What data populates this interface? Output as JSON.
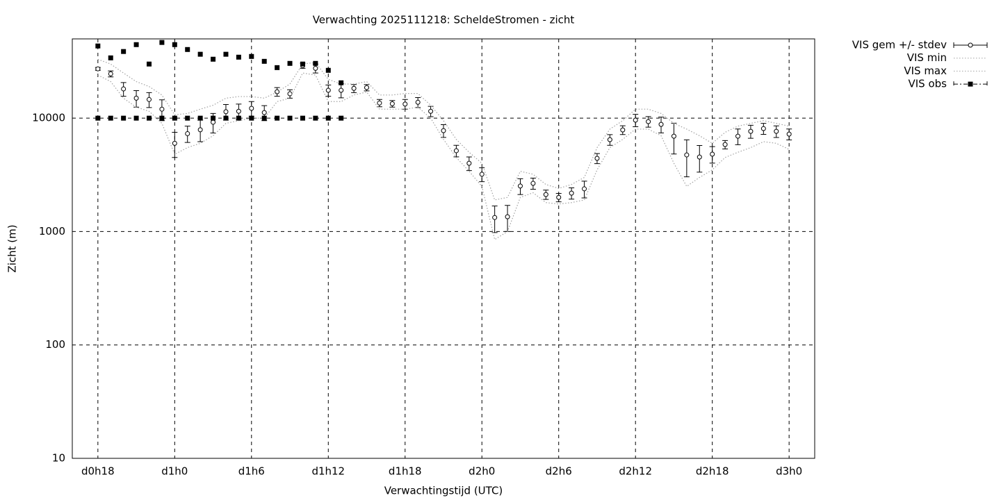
{
  "chart_data": {
    "type": "errorbar",
    "title": "Verwachting 2025111218: ScheldeStromen - zicht",
    "xlabel": "Verwachtingstijd (UTC)",
    "ylabel": "Zicht (m)",
    "log_y": true,
    "grid": true,
    "legend": "outside-right",
    "xlim": [
      16,
      74
    ],
    "ylim": [
      10,
      50000
    ],
    "xticks": [
      {
        "value": 18,
        "label": "d0h18"
      },
      {
        "value": 24,
        "label": "d1h0"
      },
      {
        "value": 30,
        "label": "d1h6"
      },
      {
        "value": 36,
        "label": "d1h12"
      },
      {
        "value": 42,
        "label": "d1h18"
      },
      {
        "value": 48,
        "label": "d2h0"
      },
      {
        "value": 54,
        "label": "d2h6"
      },
      {
        "value": 60,
        "label": "d2h12"
      },
      {
        "value": 66,
        "label": "d2h18"
      },
      {
        "value": 72,
        "label": "d3h0"
      }
    ],
    "yticks": [
      10,
      100,
      1000,
      10000
    ],
    "x": [
      18,
      19,
      20,
      21,
      22,
      23,
      24,
      25,
      26,
      27,
      28,
      29,
      30,
      31,
      32,
      33,
      34,
      35,
      36,
      37,
      38,
      39,
      40,
      41,
      42,
      43,
      44,
      45,
      46,
      47,
      48,
      49,
      50,
      51,
      52,
      53,
      54,
      55,
      56,
      57,
      58,
      59,
      60,
      61,
      62,
      63,
      64,
      65,
      66,
      67,
      68,
      69,
      70,
      71,
      72
    ],
    "series": [
      {
        "name": "VIS gem +/- stdev",
        "style": "errorbars",
        "color": "#000000",
        "values": [
          27200,
          24600,
          18100,
          15000,
          14600,
          12000,
          6000,
          7300,
          7900,
          9200,
          11400,
          11500,
          12200,
          11200,
          17100,
          16400,
          29000,
          27500,
          17600,
          17600,
          18300,
          18600,
          13600,
          13400,
          13300,
          13800,
          11500,
          7760,
          5160,
          4000,
          3200,
          1330,
          1350,
          2520,
          2660,
          2120,
          2000,
          2180,
          2380,
          4420,
          6460,
          7870,
          9600,
          9320,
          8810,
          6930,
          4740,
          4540,
          4810,
          5850,
          6930,
          7650,
          8090,
          7650,
          7230
        ],
        "stdev": [
          800,
          1500,
          2500,
          2500,
          2200,
          2500,
          1500,
          1200,
          1700,
          1800,
          1800,
          1800,
          1800,
          1700,
          1500,
          1400,
          1500,
          2500,
          2000,
          2500,
          1500,
          1200,
          1000,
          900,
          1300,
          1400,
          1200,
          1000,
          600,
          550,
          450,
          350,
          350,
          400,
          300,
          200,
          170,
          250,
          400,
          450,
          700,
          700,
          1200,
          1000,
          1400,
          2100,
          1700,
          1200,
          800,
          500,
          1100,
          1000,
          900,
          900,
          800
        ]
      },
      {
        "name": "VIS min",
        "style": "dotted",
        "color": "#a0a0a0",
        "values": [
          24000,
          21000,
          15000,
          12500,
          11500,
          9000,
          4800,
          5500,
          6000,
          7000,
          9000,
          9500,
          10000,
          10000,
          14000,
          15000,
          25000,
          24000,
          14000,
          14000,
          16000,
          17000,
          12000,
          12000,
          12000,
          12500,
          10000,
          6500,
          4500,
          3400,
          2500,
          850,
          1000,
          2000,
          2200,
          1800,
          1750,
          1800,
          1900,
          3500,
          5500,
          6500,
          8000,
          8000,
          7000,
          4000,
          2500,
          3000,
          3500,
          4500,
          5000,
          5500,
          6200,
          6000,
          5300
        ]
      },
      {
        "name": "VIS max",
        "style": "dotted",
        "color": "#a0a0a0",
        "values": [
          33000,
          30000,
          25000,
          21000,
          19000,
          16000,
          10700,
          11000,
          12000,
          13000,
          15000,
          15500,
          15500,
          15000,
          17000,
          20000,
          30000,
          31000,
          22000,
          20000,
          20000,
          21000,
          16000,
          16000,
          16500,
          16500,
          13000,
          9500,
          6500,
          5000,
          4000,
          1900,
          2000,
          3400,
          3200,
          2600,
          2400,
          2600,
          3000,
          5500,
          8000,
          9500,
          12000,
          12000,
          11000,
          9000,
          8000,
          7000,
          6000,
          7500,
          8500,
          9000,
          9500,
          9000,
          8500
        ]
      },
      {
        "name": "VIS obs",
        "style": "points",
        "color": "#000000",
        "values": [
          43300,
          34000,
          38700,
          44500,
          30000,
          46500,
          44500,
          40300,
          36600,
          33100,
          36600,
          34500,
          35000,
          31700,
          27900,
          30400,
          30000,
          30400,
          26400,
          20500,
          null,
          null,
          null,
          null,
          null,
          null,
          null,
          null,
          null,
          null,
          null,
          null,
          null,
          null,
          null,
          null,
          null,
          null,
          null,
          null,
          null,
          null,
          null,
          null,
          null,
          null,
          null,
          null,
          null,
          null,
          null,
          null,
          null,
          null,
          null
        ],
        "low": [
          10000,
          10000,
          10000,
          10000,
          10000,
          10000,
          10000,
          10000,
          10000,
          10000,
          10000,
          10000,
          10000,
          10000,
          10000,
          10000,
          10000,
          10000,
          10000,
          10000,
          null,
          null,
          null,
          null,
          null,
          null,
          null,
          null,
          null,
          null,
          null,
          null,
          null,
          null,
          null,
          null,
          null,
          null,
          null,
          null,
          null,
          null,
          null,
          null,
          null,
          null,
          null,
          null,
          null,
          null,
          null,
          null,
          null,
          null,
          null
        ]
      }
    ]
  }
}
